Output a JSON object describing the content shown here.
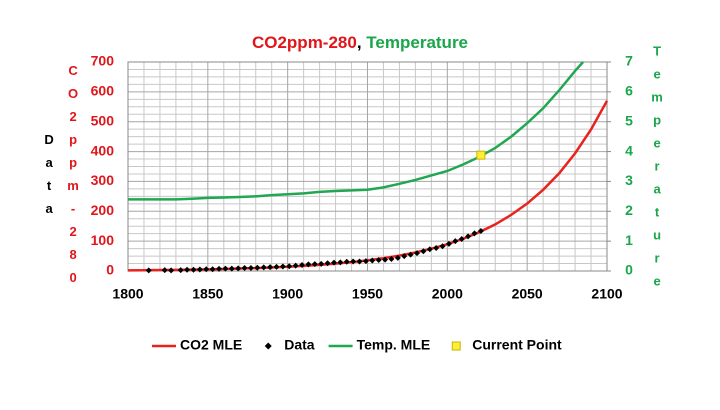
{
  "chart_data": {
    "type": "line",
    "title": [
      {
        "text": "CO2ppm-280",
        "color": "#e0161b"
      },
      {
        "text": ", ",
        "color": "#000000"
      },
      {
        "text": "Temperature",
        "color": "#1aa64a"
      }
    ],
    "ylabels": [
      {
        "text": "Data",
        "color": "#000000"
      },
      {
        "text": "CO2ppm-280",
        "color": "#e0161b"
      }
    ],
    "y2label": {
      "text": "Temperature",
      "color": "#1aa64a"
    },
    "xlim": [
      1800,
      2100
    ],
    "xticks": [
      1800,
      1850,
      1900,
      1950,
      2000,
      2050,
      2100
    ],
    "ylim": [
      0,
      700
    ],
    "yticks": [
      0,
      100,
      200,
      300,
      400,
      500,
      600,
      700
    ],
    "ytick_color": "#e0161b",
    "y2lim": [
      0,
      7
    ],
    "y2ticks": [
      0,
      1,
      2,
      3,
      4,
      5,
      6,
      7
    ],
    "y2tick_color": "#1aa64a",
    "grid": true,
    "minor_divisions": {
      "x": 5,
      "y": 4
    },
    "legend": "bottom",
    "series": [
      {
        "name": "CO2 MLE",
        "color": "#e8231e",
        "style": "line",
        "axis": "y",
        "x": [
          1800,
          1810,
          1820,
          1830,
          1840,
          1850,
          1860,
          1870,
          1880,
          1890,
          1900,
          1910,
          1920,
          1930,
          1940,
          1950,
          1960,
          1970,
          1980,
          1990,
          2000,
          2010,
          2020,
          2030,
          2040,
          2050,
          2060,
          2070,
          2080,
          2090,
          2100
        ],
        "values": [
          2.2,
          2.7,
          3.2,
          3.9,
          4.7,
          5.6,
          6.8,
          8.2,
          9.8,
          11.8,
          14.2,
          17.1,
          20.5,
          24.7,
          29.7,
          35.7,
          42.9,
          51.7,
          62.1,
          74.7,
          89.9,
          108,
          130,
          156,
          188,
          226,
          272,
          327,
          394,
          474,
          570
        ]
      },
      {
        "name": "Data",
        "color": "#000000",
        "style": "diamond",
        "axis": "y",
        "x": [
          1813,
          1823,
          1827,
          1833,
          1837,
          1841,
          1845,
          1849,
          1853,
          1857,
          1861,
          1865,
          1869,
          1873,
          1877,
          1881,
          1885,
          1889,
          1893,
          1897,
          1901,
          1905,
          1909,
          1913,
          1917,
          1921,
          1925,
          1929,
          1933,
          1937,
          1941,
          1945,
          1949,
          1953,
          1957,
          1961,
          1965,
          1969,
          1973,
          1977,
          1981,
          1985,
          1989,
          1993,
          1997,
          2001,
          2005,
          2009,
          2013,
          2017,
          2021
        ],
        "values": [
          2,
          3,
          2,
          3,
          4,
          4,
          5,
          6,
          6,
          7,
          8,
          8,
          9,
          10,
          10,
          11,
          12,
          13,
          14,
          15,
          16,
          18,
          20,
          22,
          23,
          24,
          26,
          28,
          29,
          31,
          32,
          32,
          33,
          35,
          37,
          38,
          40,
          44,
          50,
          55,
          60,
          66,
          73,
          77,
          83,
          91,
          100,
          107,
          116,
          126,
          134
        ]
      },
      {
        "name": "Temp. MLE",
        "color": "#1fa751",
        "style": "line",
        "axis": "y2",
        "x": [
          1800,
          1810,
          1820,
          1830,
          1840,
          1850,
          1860,
          1870,
          1880,
          1890,
          1900,
          1910,
          1920,
          1930,
          1940,
          1950,
          1960,
          1970,
          1980,
          1990,
          2000,
          2010,
          2020,
          2030,
          2040,
          2050,
          2060,
          2070,
          2080,
          2085
        ],
        "values": [
          2.4,
          2.4,
          2.4,
          2.4,
          2.42,
          2.45,
          2.46,
          2.48,
          2.5,
          2.54,
          2.57,
          2.6,
          2.65,
          2.68,
          2.7,
          2.72,
          2.8,
          2.92,
          3.05,
          3.2,
          3.35,
          3.57,
          3.82,
          4.12,
          4.5,
          4.95,
          5.45,
          6.05,
          6.7,
          7.0
        ]
      },
      {
        "name": "Current Point",
        "color": "#ffee33",
        "style": "square",
        "axis": "y2",
        "x": [
          2021
        ],
        "values": [
          3.88
        ]
      }
    ]
  }
}
